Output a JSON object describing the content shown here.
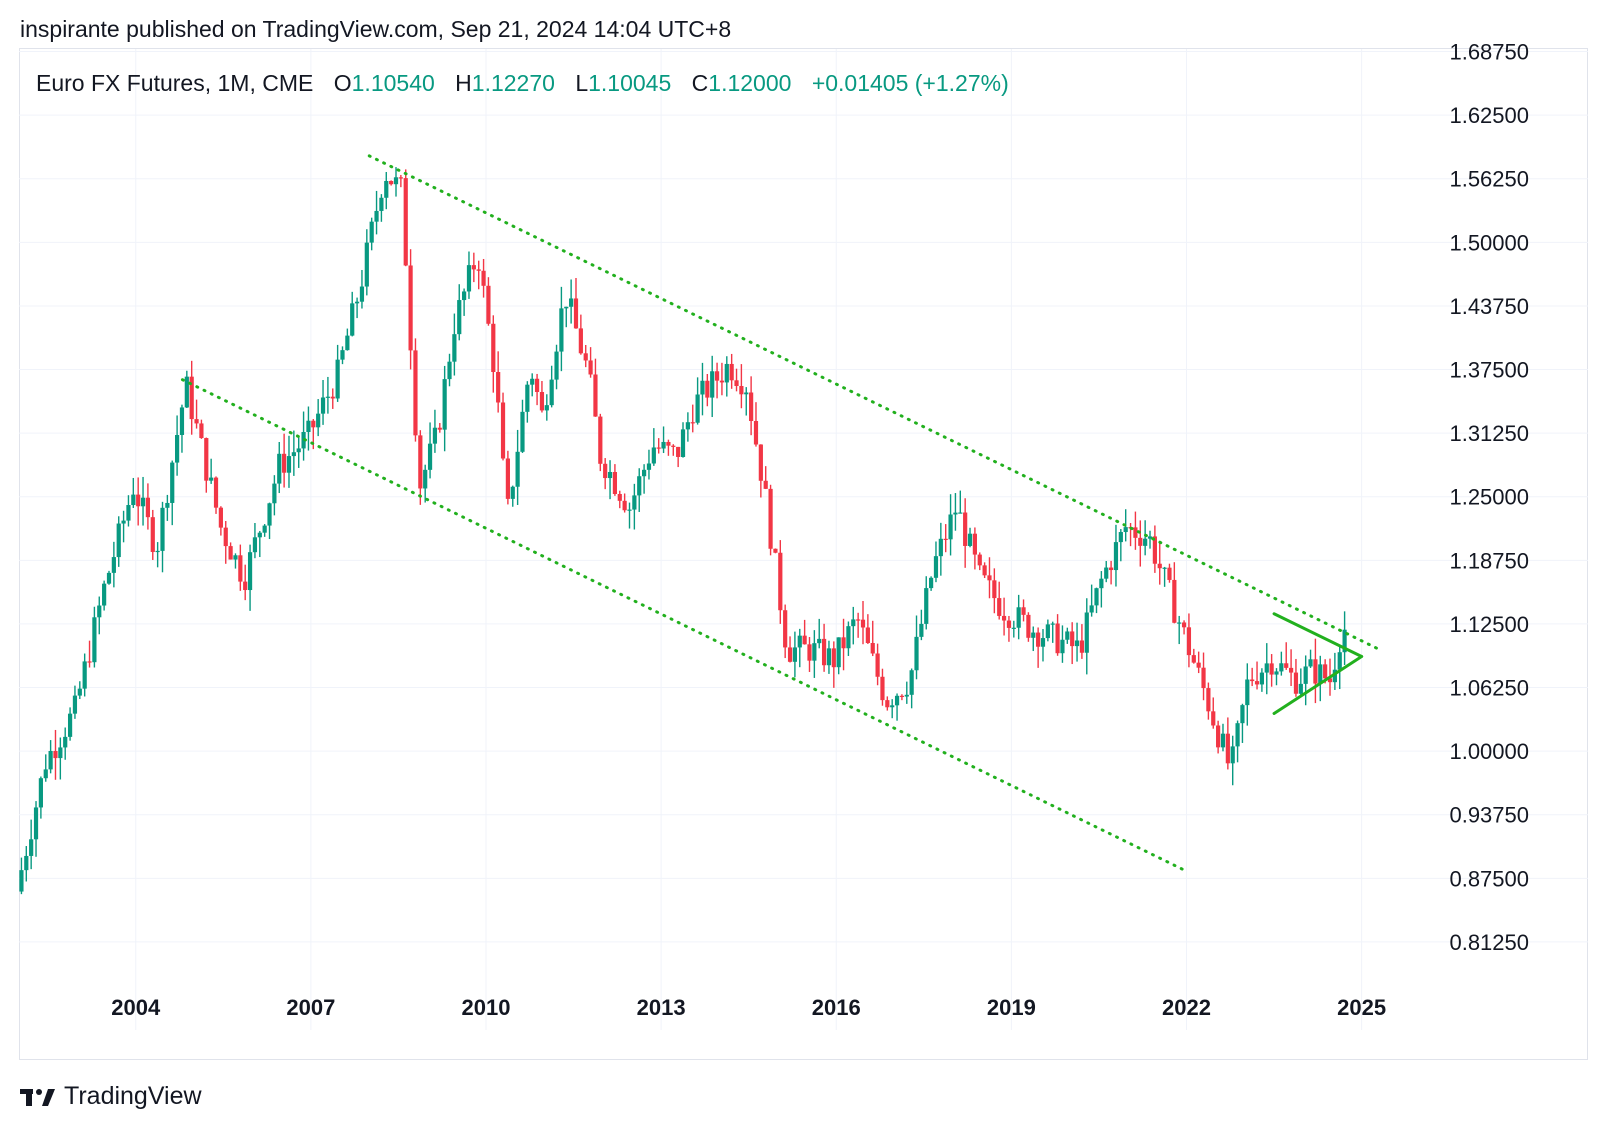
{
  "header": {
    "publisher_line": "inspirante published on TradingView.com, Sep 21, 2024 14:04 UTC+8"
  },
  "legend": {
    "symbol": "Euro FX Futures, 1M, CME",
    "open_label": "O",
    "open": "1.10540",
    "high_label": "H",
    "high": "1.12270",
    "low_label": "L",
    "low": "1.10045",
    "close_label": "C",
    "close": "1.12000",
    "change": "+0.01405 (+1.27%)"
  },
  "footer": {
    "brand": "TradingView",
    "logo_icon": "tradingview-logo-icon"
  },
  "colors": {
    "up": "#089981",
    "down": "#f23645",
    "trendline": "#22b01e",
    "grid": "#f0f3fa"
  },
  "chart_data": {
    "type": "candlestick",
    "interval": "1M",
    "ylim": [
      0.78,
      1.69
    ],
    "yticks": [
      "0.81250",
      "0.87500",
      "0.93750",
      "1.00000",
      "1.06250",
      "1.12500",
      "1.18750",
      "1.25000",
      "1.31250",
      "1.37500",
      "1.43750",
      "1.50000",
      "1.56250",
      "1.62500",
      "1.68750"
    ],
    "xlim": [
      2002.0,
      2026.0
    ],
    "xticks": [
      "2004",
      "2007",
      "2010",
      "2013",
      "2016",
      "2019",
      "2022",
      "2025"
    ],
    "grid": true,
    "anchors": [
      [
        2002.0,
        0.862
      ],
      [
        2002.5,
        0.99
      ],
      [
        2003.0,
        1.04
      ],
      [
        2003.5,
        1.16
      ],
      [
        2004.0,
        1.26
      ],
      [
        2004.4,
        1.2
      ],
      [
        2004.9,
        1.36
      ],
      [
        2005.5,
        1.22
      ],
      [
        2005.9,
        1.17
      ],
      [
        2006.5,
        1.28
      ],
      [
        2007.0,
        1.31
      ],
      [
        2007.5,
        1.37
      ],
      [
        2007.9,
        1.46
      ],
      [
        2008.3,
        1.57
      ],
      [
        2008.6,
        1.55
      ],
      [
        2008.9,
        1.26
      ],
      [
        2009.2,
        1.31
      ],
      [
        2009.5,
        1.42
      ],
      [
        2009.9,
        1.49
      ],
      [
        2010.2,
        1.37
      ],
      [
        2010.4,
        1.23
      ],
      [
        2010.8,
        1.38
      ],
      [
        2011.0,
        1.33
      ],
      [
        2011.4,
        1.45
      ],
      [
        2011.8,
        1.37
      ],
      [
        2012.0,
        1.29
      ],
      [
        2012.5,
        1.24
      ],
      [
        2012.9,
        1.3
      ],
      [
        2013.3,
        1.29
      ],
      [
        2013.6,
        1.34
      ],
      [
        2014.2,
        1.38
      ],
      [
        2014.5,
        1.36
      ],
      [
        2014.8,
        1.26
      ],
      [
        2015.2,
        1.1
      ],
      [
        2015.6,
        1.1
      ],
      [
        2016.0,
        1.09
      ],
      [
        2016.4,
        1.13
      ],
      [
        2016.9,
        1.05
      ],
      [
        2017.3,
        1.07
      ],
      [
        2017.7,
        1.18
      ],
      [
        2018.1,
        1.24
      ],
      [
        2018.5,
        1.17
      ],
      [
        2018.9,
        1.14
      ],
      [
        2019.4,
        1.12
      ],
      [
        2019.8,
        1.11
      ],
      [
        2020.2,
        1.1
      ],
      [
        2020.6,
        1.17
      ],
      [
        2021.0,
        1.22
      ],
      [
        2021.4,
        1.21
      ],
      [
        2021.9,
        1.13
      ],
      [
        2022.4,
        1.05
      ],
      [
        2022.8,
        0.98
      ],
      [
        2023.1,
        1.07
      ],
      [
        2023.5,
        1.09
      ],
      [
        2023.9,
        1.07
      ],
      [
        2024.2,
        1.08
      ],
      [
        2024.5,
        1.07
      ],
      [
        2024.7,
        1.12
      ]
    ],
    "trendlines": [
      {
        "style": "dotted",
        "from": [
          2008.0,
          1.585
        ],
        "to": [
          2025.3,
          1.1
        ]
      },
      {
        "style": "dotted",
        "from": [
          2004.8,
          1.365
        ],
        "to": [
          2022.0,
          0.882
        ]
      },
      {
        "style": "solid",
        "from": [
          2023.5,
          1.135
        ],
        "to": [
          2025.0,
          1.093
        ]
      },
      {
        "style": "solid",
        "from": [
          2023.5,
          1.037
        ],
        "to": [
          2025.0,
          1.093
        ]
      }
    ]
  }
}
